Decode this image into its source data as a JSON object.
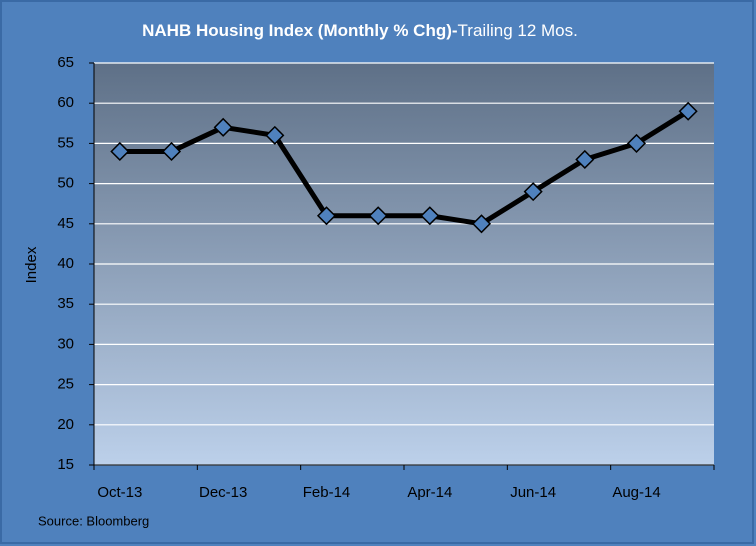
{
  "chart_data": {
    "type": "line",
    "title": "NAHB Housing Index (Monthly % Chg)-",
    "subtitle": "Trailing 12  Mos.",
    "y_label": "Index",
    "source": "Source: Bloomberg",
    "categories": [
      "Oct-13",
      null,
      "Dec-13",
      null,
      "Feb-14",
      null,
      "Apr-14",
      null,
      "Jun-14",
      null,
      "Aug-14",
      null
    ],
    "series": [
      {
        "name": "NAHB Housing Index",
        "color": "#000000",
        "marker_color": "#4f81bd",
        "values": [
          54,
          54,
          57,
          56,
          46,
          46,
          46,
          45,
          49,
          53,
          55,
          59
        ]
      }
    ],
    "ylim": [
      15,
      65
    ],
    "yticks": [
      15,
      20,
      25,
      30,
      35,
      40,
      45,
      50,
      55,
      60,
      65
    ],
    "grid": true
  }
}
